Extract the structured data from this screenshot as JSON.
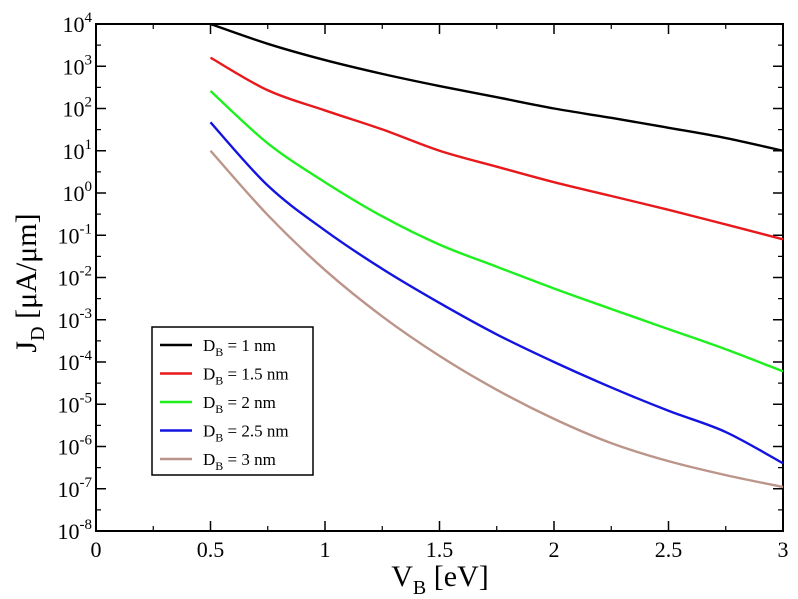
{
  "chart_data": {
    "type": "line",
    "title": "",
    "xlabel": {
      "main": "V",
      "sub": "B",
      "rest": " [eV]"
    },
    "ylabel": {
      "main": "J",
      "sub": "D",
      "rest": " [μA/μm]"
    },
    "xlim": [
      0,
      3
    ],
    "ylim_log10": [
      -8,
      4
    ],
    "y_scale": "log",
    "grid": false,
    "legend_position": "lower-left",
    "x_ticks": [
      0,
      0.5,
      1,
      1.5,
      2,
      2.5,
      3
    ],
    "x_tick_labels": [
      "0",
      "0.5",
      "1",
      "1.5",
      "2",
      "2.5",
      "3"
    ],
    "y_tick_exponents": [
      -8,
      -7,
      -6,
      -5,
      -4,
      -3,
      -2,
      -1,
      0,
      1,
      2,
      3,
      4
    ],
    "y_tick_base": "10",
    "x": [
      0.5,
      0.75,
      1.0,
      1.25,
      1.5,
      1.75,
      2.0,
      2.25,
      2.5,
      2.75,
      3.0
    ],
    "series": [
      {
        "name": "1 nm",
        "color": "#000000",
        "values": [
          10000,
          3400,
          1400,
          660,
          340,
          185,
          100,
          60,
          35,
          20,
          10
        ]
      },
      {
        "name": "1.5 nm",
        "color": "#e8191c",
        "values": [
          1600,
          270,
          90,
          32,
          10,
          4.2,
          1.8,
          0.85,
          0.4,
          0.18,
          0.08
        ]
      },
      {
        "name": "2 nm",
        "color": "#1ef01e",
        "values": [
          260,
          15,
          1.8,
          0.28,
          0.06,
          0.018,
          0.0055,
          0.0018,
          0.0006,
          0.0002,
          6e-05
        ]
      },
      {
        "name": "2.5 nm",
        "color": "#1414e0",
        "values": [
          47,
          1.5,
          0.13,
          0.016,
          0.0025,
          0.00045,
          0.0001,
          2.5e-05,
          7e-06,
          2.2e-06,
          4e-07
        ]
      },
      {
        "name": "3 nm",
        "color": "#bc958a",
        "values": [
          10,
          0.3,
          0.015,
          0.0012,
          0.00014,
          2.2e-05,
          4.5e-06,
          1.2e-06,
          4.5e-07,
          2.1e-07,
          1.1e-07
        ]
      }
    ],
    "legend_entries": [
      {
        "prefix": "D",
        "sub": "B",
        "text": " = 1 nm"
      },
      {
        "prefix": "D",
        "sub": "B",
        "text": " = 1.5 nm"
      },
      {
        "prefix": "D",
        "sub": "B",
        "text": " = 2 nm"
      },
      {
        "prefix": "D",
        "sub": "B",
        "text": " = 2.5 nm"
      },
      {
        "prefix": "D",
        "sub": "B",
        "text": " = 3 nm"
      }
    ]
  }
}
